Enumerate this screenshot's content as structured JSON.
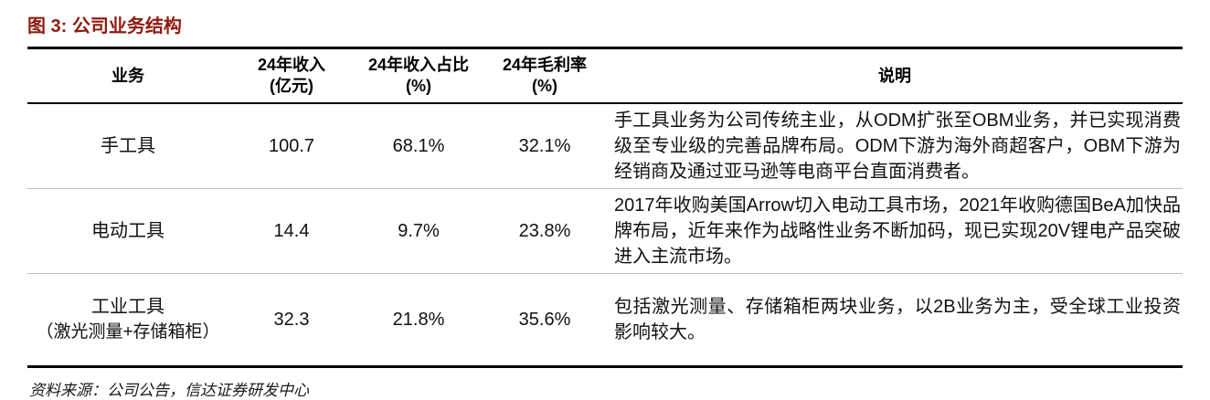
{
  "title": "图 3: 公司业务结构",
  "table": {
    "columns": [
      {
        "label": "业务",
        "sub": ""
      },
      {
        "label": "24年收入",
        "sub": "(亿元)"
      },
      {
        "label": "24年收入占比",
        "sub": "(%)"
      },
      {
        "label": "24年毛利率",
        "sub": "(%)"
      },
      {
        "label": "说明",
        "sub": ""
      }
    ],
    "rows": [
      {
        "business": "手工具",
        "business_sub": "",
        "revenue": "100.7",
        "revenue_share": "68.1%",
        "gross_margin": "32.1%",
        "description": "手工具业务为公司传统主业，从ODM扩张至OBM业务，并已实现消费级至专业级的完善品牌布局。ODM下游为海外商超客户，OBM下游为经销商及通过亚马逊等电商平台直面消费者。"
      },
      {
        "business": "电动工具",
        "business_sub": "",
        "revenue": "14.4",
        "revenue_share": "9.7%",
        "gross_margin": "23.8%",
        "description": "2017年收购美国Arrow切入电动工具市场，2021年收购德国BeA加快品牌布局，近年来作为战略性业务不断加码，现已实现20V锂电产品突破进入主流市场。"
      },
      {
        "business": "工业工具",
        "business_sub": "（激光测量+存储箱柜）",
        "revenue": "32.3",
        "revenue_share": "21.8%",
        "gross_margin": "35.6%",
        "description": "包括激光测量、存储箱柜两块业务，以2B业务为主，受全球工业投资影响较大。"
      }
    ]
  },
  "source": "资料来源：公司公告，信达证券研发中心",
  "colors": {
    "title_red": "#8E1B12"
  }
}
